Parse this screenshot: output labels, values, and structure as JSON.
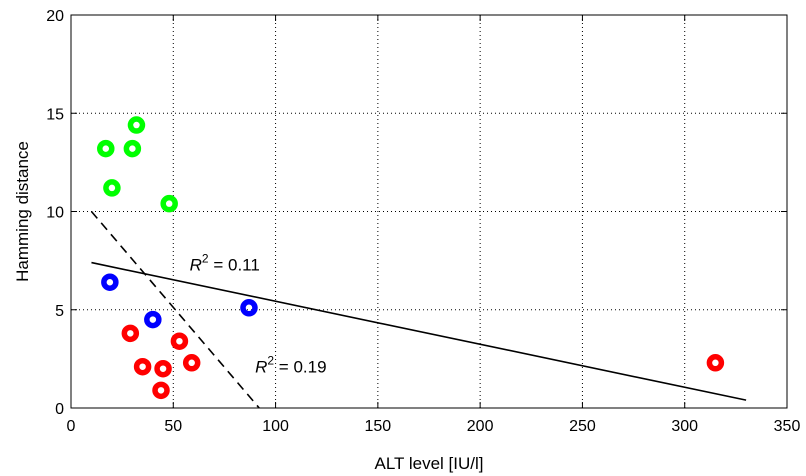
{
  "chart_data": {
    "type": "scatter",
    "title": "",
    "xlabel": "ALT level [IU/l]",
    "ylabel": "Hamming distance",
    "xlim": [
      0,
      350
    ],
    "ylim": [
      0,
      20
    ],
    "xticks": [
      0,
      50,
      100,
      150,
      200,
      250,
      300,
      350
    ],
    "yticks": [
      0,
      5,
      10,
      15,
      20
    ],
    "grid": true,
    "series": [
      {
        "color": "#00ff00",
        "points": [
          [
            17,
            13.2
          ],
          [
            20,
            11.2
          ],
          [
            30,
            13.2
          ],
          [
            32,
            14.4
          ],
          [
            48,
            10.4
          ]
        ]
      },
      {
        "color": "#0000ff",
        "points": [
          [
            19,
            6.4
          ],
          [
            40,
            4.5
          ],
          [
            87,
            5.1
          ]
        ]
      },
      {
        "color": "#ff0000",
        "points": [
          [
            29,
            3.8
          ],
          [
            35,
            2.1
          ],
          [
            44,
            0.9
          ],
          [
            45,
            2.0
          ],
          [
            53,
            3.4
          ],
          [
            59,
            2.3
          ],
          [
            315,
            2.3
          ]
        ]
      }
    ],
    "fit_lines": [
      {
        "style": "solid",
        "x": [
          10,
          330
        ],
        "y": [
          7.4,
          0.4
        ],
        "annotation": {
          "prefix": "R",
          "sup": "2",
          "suffix": " = 0.11",
          "at": [
            58,
            7.0
          ]
        }
      },
      {
        "style": "dashed",
        "x": [
          10,
          92
        ],
        "y": [
          10,
          0
        ],
        "annotation": {
          "prefix": "R",
          "sup": "2",
          "suffix": " = 0.19",
          "at": [
            90,
            1.8
          ]
        }
      }
    ]
  }
}
